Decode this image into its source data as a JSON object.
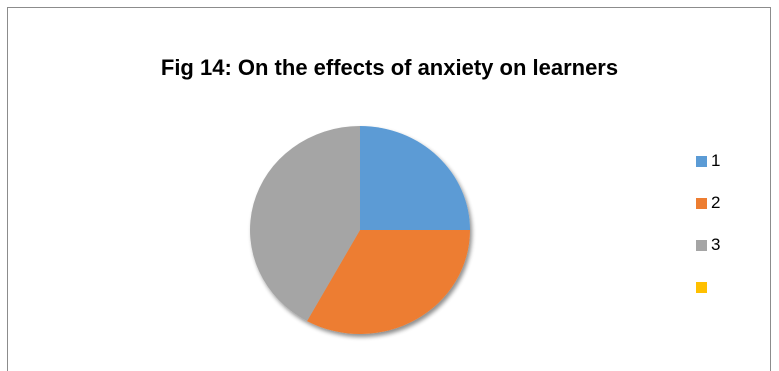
{
  "chart_data": {
    "type": "pie",
    "title": "Fig 14: On the effects of anxiety on learners",
    "categories": [
      "1",
      "2",
      "3",
      ""
    ],
    "values": [
      25,
      33,
      42,
      0
    ],
    "colors": [
      "#5b9bd5",
      "#ed7d31",
      "#a5a5a5",
      "#ffc000"
    ],
    "start_angle_deg": 0,
    "direction": "clockwise",
    "legend_position": "right"
  }
}
